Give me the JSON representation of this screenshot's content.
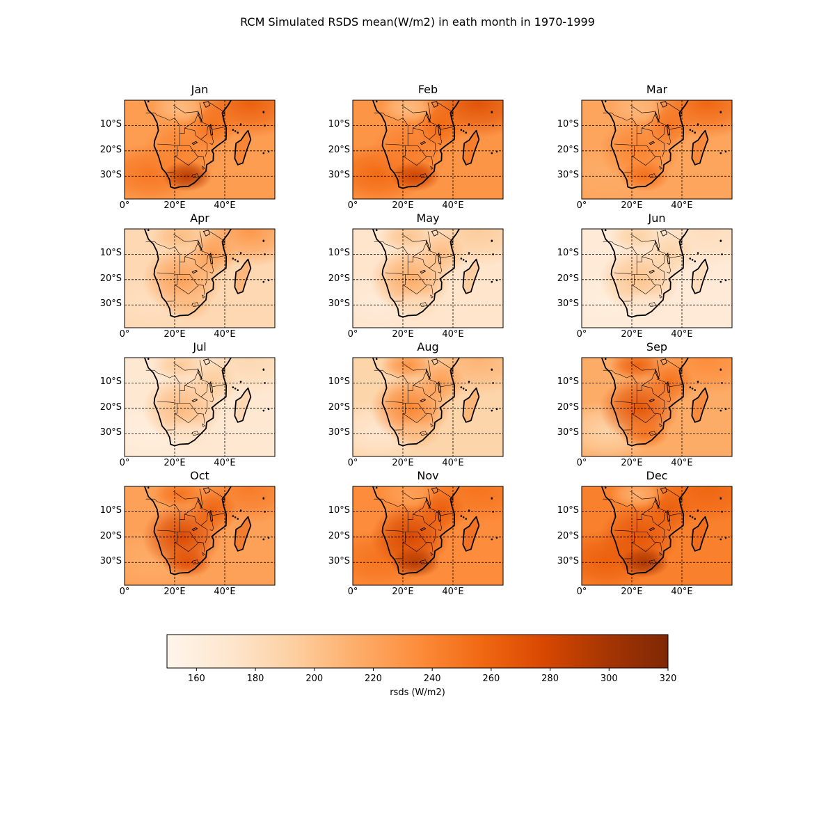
{
  "figure": {
    "title": "RCM Simulated RSDS mean(W/m2) in eath month in 1970-1999"
  },
  "colormap": {
    "name": "Oranges",
    "stops": [
      "#fff5eb",
      "#fee6ce",
      "#fdd0a2",
      "#fdae6b",
      "#fd8d3c",
      "#f16913",
      "#d94801",
      "#a63603",
      "#7f2704"
    ]
  },
  "map_region": {
    "lon_range": [
      0,
      60
    ],
    "lat_range": [
      -39,
      0
    ]
  },
  "axis_ticks": {
    "lat": [
      {
        "value": -10,
        "label": "10°S"
      },
      {
        "value": -20,
        "label": "20°S"
      },
      {
        "value": -30,
        "label": "30°S"
      }
    ],
    "lon": [
      {
        "value": 0,
        "label": "0°"
      },
      {
        "value": 20,
        "label": "20°E"
      },
      {
        "value": 40,
        "label": "40°E"
      }
    ]
  },
  "panels": [
    {
      "month": "Jan",
      "ocean": 225,
      "ne": 262,
      "land": 240,
      "south": 290,
      "north_land": 205,
      "sw_ocean": 248
    },
    {
      "month": "Feb",
      "ocean": 230,
      "ne": 270,
      "land": 243,
      "south": 282,
      "north_land": 205,
      "sw_ocean": 255
    },
    {
      "month": "Mar",
      "ocean": 220,
      "ne": 258,
      "land": 240,
      "south": 252,
      "north_land": 208,
      "sw_ocean": 215
    },
    {
      "month": "Apr",
      "ocean": 185,
      "ne": 228,
      "land": 222,
      "south": 205,
      "north_land": 205,
      "sw_ocean": 178
    },
    {
      "month": "May",
      "ocean": 172,
      "ne": 195,
      "land": 215,
      "south": 182,
      "north_land": 200,
      "sw_ocean": 165
    },
    {
      "month": "Jun",
      "ocean": 165,
      "ne": 180,
      "land": 200,
      "south": 170,
      "north_land": 192,
      "sw_ocean": 160
    },
    {
      "month": "Jul",
      "ocean": 168,
      "ne": 185,
      "land": 206,
      "south": 175,
      "north_land": 196,
      "sw_ocean": 160
    },
    {
      "month": "Aug",
      "ocean": 188,
      "ne": 210,
      "land": 240,
      "south": 205,
      "north_land": 232,
      "sw_ocean": 170
    },
    {
      "month": "Sep",
      "ocean": 215,
      "ne": 235,
      "land": 268,
      "south": 250,
      "north_land": 260,
      "sw_ocean": 190
    },
    {
      "month": "Oct",
      "ocean": 222,
      "ne": 245,
      "land": 276,
      "south": 272,
      "north_land": 250,
      "sw_ocean": 215
    },
    {
      "month": "Nov",
      "ocean": 235,
      "ne": 250,
      "land": 278,
      "south": 292,
      "north_land": 222,
      "sw_ocean": 250
    },
    {
      "month": "Dec",
      "ocean": 242,
      "ne": 258,
      "land": 268,
      "south": 296,
      "north_land": 212,
      "sw_ocean": 262
    }
  ],
  "colorbar": {
    "vmin": 150,
    "vmax": 320,
    "ticks": [
      160,
      180,
      200,
      220,
      240,
      260,
      280,
      300,
      320
    ],
    "label": "rsds (W/m2)"
  }
}
